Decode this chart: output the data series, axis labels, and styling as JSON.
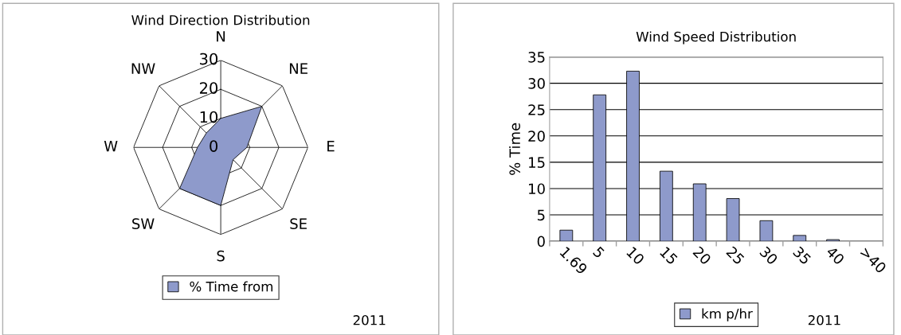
{
  "chart_data": [
    {
      "type": "radar",
      "title": "Wind Direction Distribution",
      "categories": [
        "N",
        "NE",
        "E",
        "SE",
        "S",
        "SW",
        "W",
        "NW"
      ],
      "series": [
        {
          "name": "% Time from",
          "color": "#8e9acb",
          "values": [
            10,
            20,
            9,
            6,
            20,
            20,
            8,
            7
          ]
        }
      ],
      "ylim": [
        0,
        30
      ],
      "yticks": [
        0,
        10,
        20,
        30
      ],
      "grid": true,
      "legend": "bottom",
      "annotations": [
        "2011"
      ]
    },
    {
      "type": "bar",
      "title": "Wind Speed Distribution",
      "ylabel": "% Time",
      "categories": [
        "1.69",
        "5",
        "10",
        "15",
        "20",
        "25",
        "30",
        "35",
        "40",
        ">40"
      ],
      "series": [
        {
          "name": "km p/hr",
          "color": "#8e9acb",
          "values": [
            2.1,
            27.8,
            32.3,
            13.3,
            10.9,
            8.1,
            3.9,
            1.1,
            0.3,
            0
          ]
        }
      ],
      "ylim": [
        0,
        35
      ],
      "yticks": [
        0,
        5,
        10,
        15,
        20,
        25,
        30,
        35
      ],
      "grid": "y",
      "legend": "bottom",
      "annotations": [
        "2011"
      ]
    }
  ]
}
